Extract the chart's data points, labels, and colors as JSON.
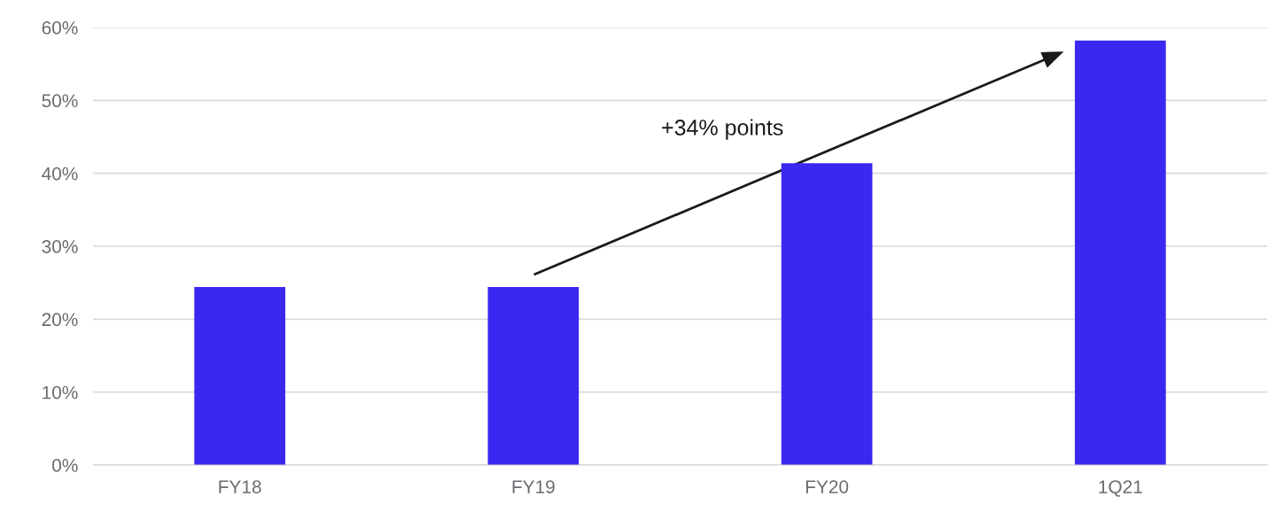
{
  "chart_data": {
    "type": "bar",
    "categories": [
      "FY18",
      "FY19",
      "FY20",
      "1Q21"
    ],
    "values": [
      24.4,
      24.4,
      41.4,
      58.2
    ],
    "color": "#3a28f0",
    "ylim": [
      0,
      60
    ],
    "yticks": [
      {
        "value": 0,
        "label": "0%"
      },
      {
        "value": 10,
        "label": "10%"
      },
      {
        "value": 20,
        "label": "20%"
      },
      {
        "value": 30,
        "label": "30%"
      },
      {
        "value": 40,
        "label": "40%"
      },
      {
        "value": 50,
        "label": "50%"
      },
      {
        "value": 60,
        "label": "60%"
      }
    ],
    "grid": "y",
    "annotations": [
      "+34% points"
    ]
  }
}
